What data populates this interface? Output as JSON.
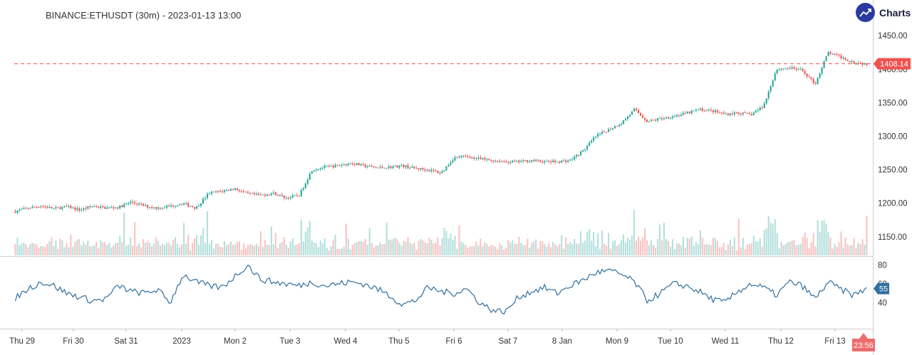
{
  "header": {
    "title": "BINANCE:ETHUSDT (30m) - 2023-01-13 13:00"
  },
  "brand": {
    "label": "Charts p",
    "icon": "trend-up-icon",
    "color": "#2a3aa0"
  },
  "colors": {
    "up": "#26a69a",
    "down": "#ef5350",
    "rsi": "#2f6f9f",
    "price_tag": "#ef5350",
    "rsi_tag": "#2f6f9f",
    "timer_tag": "#ef6c6c"
  },
  "chart_data": [
    {
      "type": "candlestick",
      "symbol": "ETHUSDT",
      "exchange": "BINANCE",
      "interval": "30m",
      "x_ticks": [
        "Thu 29",
        "Fri 30",
        "Sat 31",
        "2023",
        "Mon 2",
        "Tue 3",
        "Wed 4",
        "Thu 5",
        "Fri 6",
        "Sat 7",
        "8 Jan",
        "Mon 9",
        "Tue 10",
        "Wed 11",
        "Thu 12",
        "Fri 13"
      ],
      "y_ticks": [
        "1450.00",
        "1400.00",
        "1350.00",
        "1300.00",
        "1250.00",
        "1200.00",
        "1150.00"
      ],
      "ylim": [
        1135,
        1465
      ],
      "last_price": 1408.14,
      "last_price_label": "1408.14",
      "countdown_label": "23:56",
      "anchors": [
        [
          0,
          1188
        ],
        [
          1,
          1193
        ],
        [
          2,
          1196
        ],
        [
          3,
          1192
        ],
        [
          4,
          1195
        ],
        [
          5,
          1190
        ],
        [
          6,
          1196
        ],
        [
          7,
          1193
        ],
        [
          8,
          1194
        ],
        [
          9,
          1202
        ],
        [
          10,
          1196
        ],
        [
          11,
          1193
        ],
        [
          12,
          1196
        ],
        [
          13,
          1200
        ],
        [
          14,
          1193
        ],
        [
          15,
          1215
        ],
        [
          16,
          1218
        ],
        [
          17,
          1222
        ],
        [
          18,
          1214
        ],
        [
          19,
          1212
        ],
        [
          20,
          1215
        ],
        [
          21,
          1208
        ],
        [
          22,
          1212
        ],
        [
          23,
          1250
        ],
        [
          24,
          1254
        ],
        [
          25,
          1256
        ],
        [
          26,
          1260
        ],
        [
          27,
          1256
        ],
        [
          28,
          1253
        ],
        [
          29,
          1254
        ],
        [
          30,
          1256
        ],
        [
          31,
          1252
        ],
        [
          32,
          1250
        ],
        [
          33,
          1245
        ],
        [
          34,
          1268
        ],
        [
          35,
          1270
        ],
        [
          36,
          1266
        ],
        [
          37,
          1264
        ],
        [
          38,
          1262
        ],
        [
          39,
          1262
        ],
        [
          40,
          1264
        ],
        [
          41,
          1262
        ],
        [
          42,
          1262
        ],
        [
          43,
          1264
        ],
        [
          44,
          1278
        ],
        [
          45,
          1300
        ],
        [
          46,
          1310
        ],
        [
          47,
          1320
        ],
        [
          48,
          1340
        ],
        [
          49,
          1322
        ],
        [
          50,
          1326
        ],
        [
          51,
          1330
        ],
        [
          52,
          1334
        ],
        [
          53,
          1340
        ],
        [
          54,
          1338
        ],
        [
          55,
          1333
        ],
        [
          56,
          1335
        ],
        [
          57,
          1332
        ],
        [
          58,
          1345
        ],
        [
          59,
          1400
        ],
        [
          60,
          1402
        ],
        [
          61,
          1398
        ],
        [
          62,
          1378
        ],
        [
          63,
          1425
        ],
        [
          64,
          1418
        ],
        [
          65,
          1410
        ],
        [
          66,
          1408
        ]
      ],
      "series": [
        {
          "name": "",
          "type": "volume"
        }
      ]
    },
    {
      "type": "line",
      "indicator": "RSI",
      "y_ticks": [
        "80",
        "60",
        "40"
      ],
      "ylim": [
        26,
        82
      ],
      "last_value": 55,
      "last_value_label": "55",
      "anchors": [
        [
          0,
          45
        ],
        [
          1,
          55
        ],
        [
          2,
          62
        ],
        [
          3,
          58
        ],
        [
          4,
          50
        ],
        [
          5,
          46
        ],
        [
          6,
          42
        ],
        [
          7,
          44
        ],
        [
          8,
          58
        ],
        [
          9,
          52
        ],
        [
          10,
          50
        ],
        [
          11,
          54
        ],
        [
          12,
          40
        ],
        [
          13,
          70
        ],
        [
          14,
          62
        ],
        [
          15,
          58
        ],
        [
          16,
          56
        ],
        [
          17,
          68
        ],
        [
          18,
          80
        ],
        [
          19,
          65
        ],
        [
          20,
          62
        ],
        [
          21,
          60
        ],
        [
          22,
          58
        ],
        [
          23,
          62
        ],
        [
          24,
          58
        ],
        [
          25,
          60
        ],
        [
          26,
          62
        ],
        [
          27,
          60
        ],
        [
          28,
          55
        ],
        [
          29,
          48
        ],
        [
          30,
          38
        ],
        [
          31,
          42
        ],
        [
          32,
          56
        ],
        [
          33,
          52
        ],
        [
          34,
          50
        ],
        [
          35,
          55
        ],
        [
          36,
          40
        ],
        [
          37,
          32
        ],
        [
          38,
          30
        ],
        [
          39,
          46
        ],
        [
          40,
          52
        ],
        [
          41,
          56
        ],
        [
          42,
          50
        ],
        [
          43,
          58
        ],
        [
          44,
          64
        ],
        [
          45,
          72
        ],
        [
          46,
          74
        ],
        [
          47,
          70
        ],
        [
          48,
          62
        ],
        [
          49,
          42
        ],
        [
          50,
          50
        ],
        [
          51,
          60
        ],
        [
          52,
          58
        ],
        [
          53,
          52
        ],
        [
          54,
          44
        ],
        [
          55,
          40
        ],
        [
          56,
          52
        ],
        [
          57,
          60
        ],
        [
          58,
          56
        ],
        [
          59,
          48
        ],
        [
          60,
          62
        ],
        [
          61,
          58
        ],
        [
          62,
          44
        ],
        [
          63,
          62
        ],
        [
          64,
          54
        ],
        [
          65,
          48
        ],
        [
          66,
          55
        ]
      ]
    }
  ]
}
